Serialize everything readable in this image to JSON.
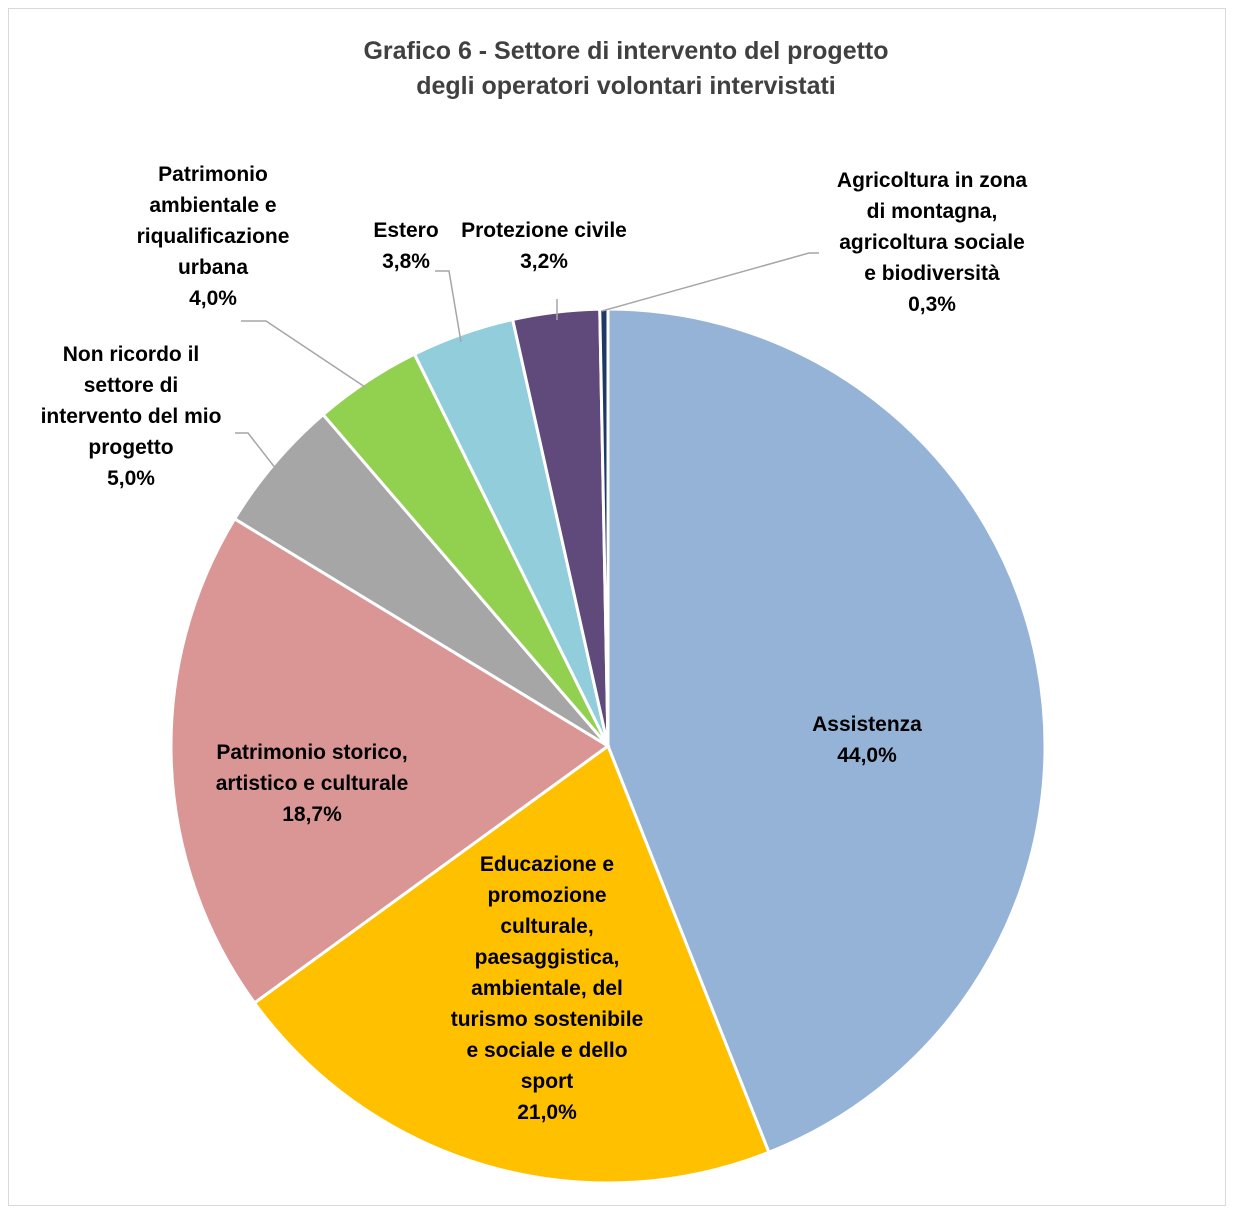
{
  "chart_data": {
    "type": "pie",
    "title": "Grafico 6  - Settore di intervento del progetto degli operatori volontari intervistati",
    "title_lines": [
      "Grafico 6  - Settore di intervento del progetto",
      "degli operatori volontari intervistati"
    ],
    "slices": [
      {
        "label": "Assistenza",
        "label_lines": [
          "Assistenza"
        ],
        "value": 44.0,
        "value_label": "44,0%",
        "color": "#95b3d7"
      },
      {
        "label": "Educazione e promozione culturale, paesaggistica, ambientale, del turismo sostenibile e sociale e dello sport",
        "label_lines": [
          "Educazione e",
          "promozione",
          "culturale,",
          "paesaggistica,",
          "ambientale, del",
          "turismo sostenibile",
          "e sociale e dello",
          "sport"
        ],
        "value": 21.0,
        "value_label": "21,0%",
        "color": "#ffc000"
      },
      {
        "label": "Patrimonio storico, artistico e culturale",
        "label_lines": [
          "Patrimonio storico,",
          "artistico e culturale"
        ],
        "value": 18.7,
        "value_label": "18,7%",
        "color": "#d99694"
      },
      {
        "label": "Non ricordo il settore di intervento del mio progetto",
        "label_lines": [
          "Non ricordo il",
          "settore di",
          "intervento del mio",
          "progetto"
        ],
        "value": 5.0,
        "value_label": "5,0%",
        "color": "#a6a6a6"
      },
      {
        "label": "Patrimonio ambientale e riqualificazione urbana",
        "label_lines": [
          "Patrimonio",
          "ambientale e",
          "riqualificazione",
          "urbana"
        ],
        "value": 4.0,
        "value_label": "4,0%",
        "color": "#92d050"
      },
      {
        "label": "Estero",
        "label_lines": [
          "Estero"
        ],
        "value": 3.8,
        "value_label": "3,8%",
        "color": "#92cddc"
      },
      {
        "label": "Protezione civile",
        "label_lines": [
          "Protezione civile"
        ],
        "value": 3.2,
        "value_label": "3,2%",
        "color": "#604a7b"
      },
      {
        "label": "Agricoltura in zona di montagna, agricoltura sociale e biodiversità",
        "label_lines": [
          "Agricoltura in zona",
          "di montagna,",
          "agricoltura sociale",
          "e biodiversità"
        ],
        "value": 0.3,
        "value_label": "0,3%",
        "color": "#1f3864"
      }
    ]
  }
}
